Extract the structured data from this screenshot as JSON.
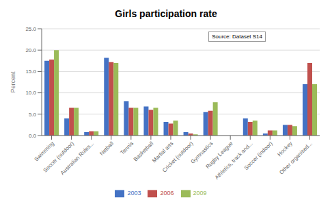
{
  "chart_data": {
    "type": "bar",
    "title": "Girls participation rate",
    "ylabel": "Percent",
    "annotation": "Source: Dataset S14",
    "categories": [
      "Swimming",
      "Soccer (outdoor)",
      "Australian Rules...",
      "Netball",
      "Tennis",
      "Basketball",
      "Martial arts",
      "Cricket (outdoor)",
      "Gymnastics",
      "Rugby League",
      "Athletics, track and...",
      "Soccer (indoor)",
      "Hockey",
      "Other organised..."
    ],
    "series": [
      {
        "name": "2003",
        "color": "#4472C4",
        "values": [
          17.5,
          4.0,
          0.8,
          18.2,
          8.0,
          6.8,
          3.2,
          0.8,
          5.5,
          0.0,
          4.0,
          0.5,
          2.5,
          12.0
        ]
      },
      {
        "name": "2006",
        "color": "#C0504D",
        "values": [
          17.8,
          6.5,
          1.0,
          17.2,
          6.5,
          6.0,
          2.8,
          0.5,
          5.8,
          0.0,
          3.2,
          1.2,
          2.5,
          17.0
        ]
      },
      {
        "name": "2009",
        "color": "#9BBB59",
        "values": [
          20.0,
          6.5,
          1.0,
          17.0,
          6.5,
          6.5,
          3.5,
          0.3,
          7.8,
          0.0,
          3.5,
          1.2,
          2.2,
          12.0
        ]
      }
    ],
    "ylim": [
      0,
      25
    ],
    "yticks": [
      {
        "value": 0,
        "label": "0.0"
      },
      {
        "value": 5,
        "label": "5.0"
      },
      {
        "value": 10,
        "label": "10.0"
      },
      {
        "value": 15,
        "label": "15.0"
      },
      {
        "value": 20,
        "label": "20.0"
      },
      {
        "value": 25,
        "label": "25.0"
      }
    ],
    "grid": true,
    "legend": "bottom"
  }
}
